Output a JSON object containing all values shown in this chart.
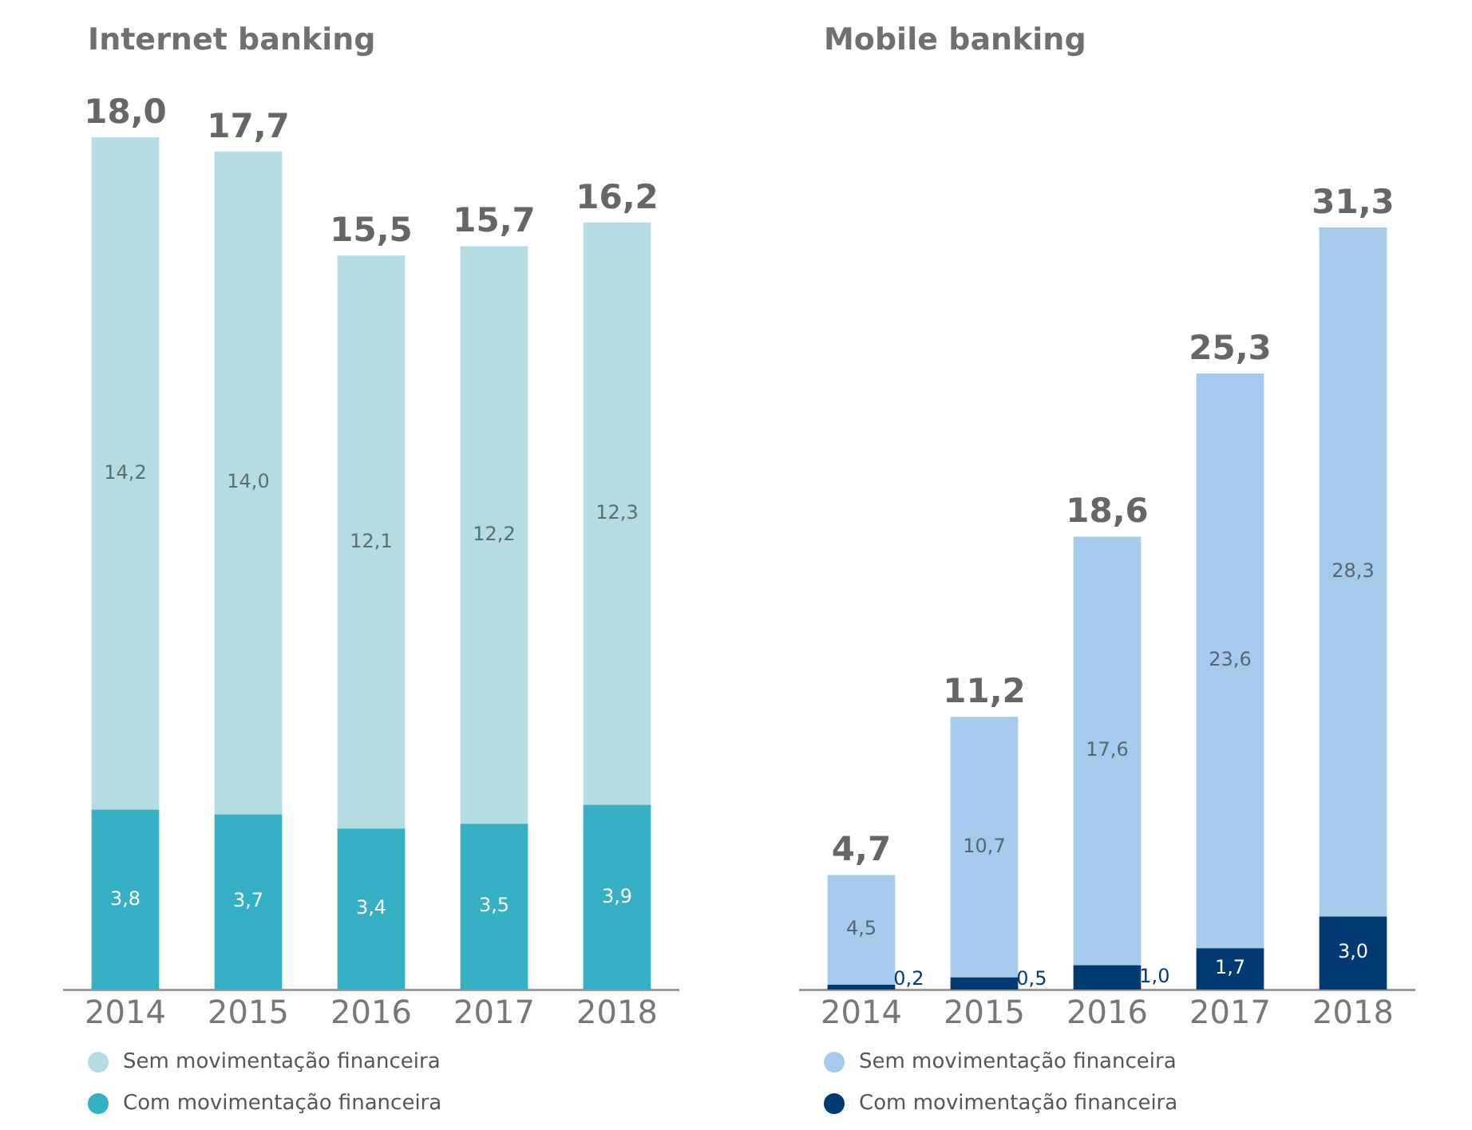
{
  "chart_data": [
    {
      "type": "bar",
      "title": "Internet banking",
      "stacked": true,
      "categories": [
        "2014",
        "2015",
        "2016",
        "2017",
        "2018"
      ],
      "series": [
        {
          "name": "Com movimentação financeira",
          "color": "#35b0c4",
          "values": [
            3.8,
            3.7,
            3.4,
            3.5,
            3.9
          ],
          "value_labels": [
            "3,8",
            "3,7",
            "3,4",
            "3,5",
            "3,9"
          ]
        },
        {
          "name": "Sem movimentação financeira",
          "color": "#b3dde3",
          "values": [
            14.2,
            14.0,
            12.1,
            12.2,
            12.3
          ],
          "value_labels": [
            "14,2",
            "14,0",
            "12,1",
            "12,2",
            "12,3"
          ]
        }
      ],
      "totals": [
        "18,0",
        "17,7",
        "15,5",
        "15,7",
        "16,2"
      ],
      "tick_labels": "x",
      "grid": false,
      "legend": "bottom"
    },
    {
      "type": "bar",
      "title": "Mobile banking",
      "stacked": true,
      "categories": [
        "2014",
        "2015",
        "2016",
        "2017",
        "2018"
      ],
      "series": [
        {
          "name": "Com movimentação financeira",
          "color": "#003a70",
          "values": [
            0.2,
            0.5,
            1.0,
            1.7,
            3.0
          ],
          "value_labels": [
            "0,2",
            "0,5",
            "1,0",
            "1,7",
            "3,0"
          ]
        },
        {
          "name": "Sem movimentação financeira",
          "color": "#a5cbec",
          "values": [
            4.5,
            10.7,
            17.6,
            23.6,
            28.3
          ],
          "value_labels": [
            "4,5",
            "10,7",
            "17,6",
            "23,6",
            "28,3"
          ]
        }
      ],
      "totals": [
        "4,7",
        "11,2",
        "18,6",
        "25,3",
        "31,3"
      ],
      "tick_labels": "x",
      "grid": false,
      "legend": "bottom"
    }
  ]
}
